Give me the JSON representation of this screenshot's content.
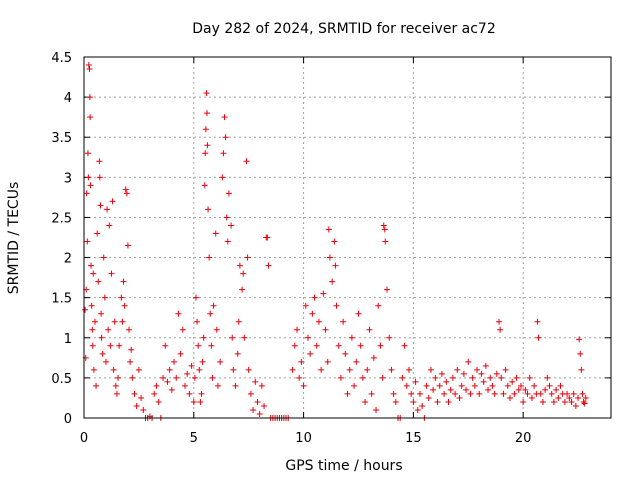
{
  "chart_data": {
    "type": "scatter",
    "title": "Day 282 of 2024, SRMTID for receiver ac72",
    "xlabel": "GPS time / hours",
    "ylabel": "SRMTID / TECUs",
    "xlim": [
      0,
      24
    ],
    "ylim": [
      0,
      4.5
    ],
    "xticks": [
      0,
      5,
      10,
      15,
      20
    ],
    "xtick_labels": [
      "0",
      "5",
      "10",
      "15",
      "20"
    ],
    "yticks": [
      0,
      0.5,
      1,
      1.5,
      2,
      2.5,
      3,
      3.5,
      4,
      4.5
    ],
    "ytick_labels": [
      "0",
      "0.5",
      "1",
      "1.5",
      "2",
      "2.5",
      "3",
      "3.5",
      "4",
      "4.5"
    ],
    "grid": true,
    "marker": "plus",
    "color": "#e8000b",
    "series": [
      {
        "name": "SRMTID",
        "points": [
          [
            0.05,
            1.35
          ],
          [
            0.08,
            0.75
          ],
          [
            0.1,
            1.6
          ],
          [
            0.12,
            2.8
          ],
          [
            0.15,
            2.2
          ],
          [
            0.18,
            3.3
          ],
          [
            0.2,
            3.0
          ],
          [
            0.22,
            4.4
          ],
          [
            0.25,
            4.35
          ],
          [
            0.27,
            4.0
          ],
          [
            0.28,
            3.75
          ],
          [
            0.3,
            2.9
          ],
          [
            0.32,
            1.9
          ],
          [
            0.35,
            1.4
          ],
          [
            0.38,
            1.1
          ],
          [
            0.4,
            0.9
          ],
          [
            0.42,
            1.8
          ],
          [
            0.45,
            0.6
          ],
          [
            0.5,
            1.2
          ],
          [
            0.55,
            0.4
          ],
          [
            0.6,
            2.3
          ],
          [
            0.65,
            1.7
          ],
          [
            0.7,
            3.2
          ],
          [
            0.72,
            3.0
          ],
          [
            0.75,
            2.65
          ],
          [
            0.78,
            1.3
          ],
          [
            0.8,
            1.0
          ],
          [
            0.85,
            0.8
          ],
          [
            0.9,
            2.0
          ],
          [
            0.95,
            1.5
          ],
          [
            1.0,
            0.7
          ],
          [
            1.05,
            2.6
          ],
          [
            1.1,
            1.1
          ],
          [
            1.15,
            2.4
          ],
          [
            1.2,
            0.9
          ],
          [
            1.25,
            1.8
          ],
          [
            1.3,
            2.7
          ],
          [
            1.35,
            0.6
          ],
          [
            1.4,
            1.2
          ],
          [
            1.45,
            0.4
          ],
          [
            1.5,
            0.3
          ],
          [
            1.55,
            0.5
          ],
          [
            1.6,
            0.9
          ],
          [
            1.7,
            1.5
          ],
          [
            1.75,
            1.2
          ],
          [
            1.8,
            1.7
          ],
          [
            1.85,
            1.4
          ],
          [
            1.9,
            2.85
          ],
          [
            1.95,
            2.8
          ],
          [
            2.0,
            2.15
          ],
          [
            2.05,
            1.1
          ],
          [
            2.1,
            0.7
          ],
          [
            2.15,
            0.85
          ],
          [
            2.2,
            0.5
          ],
          [
            2.3,
            0.3
          ],
          [
            2.4,
            0.15
          ],
          [
            2.5,
            0.6
          ],
          [
            2.6,
            0.25
          ],
          [
            2.7,
            0.1
          ],
          [
            2.8,
            0.0
          ],
          [
            2.9,
            0.0
          ],
          [
            3.0,
            0.02
          ],
          [
            3.1,
            0.0
          ],
          [
            3.2,
            0.3
          ],
          [
            3.3,
            0.4
          ],
          [
            3.4,
            0.2
          ],
          [
            3.5,
            0.0
          ],
          [
            3.6,
            0.5
          ],
          [
            3.7,
            0.9
          ],
          [
            3.8,
            0.45
          ],
          [
            3.9,
            0.6
          ],
          [
            4.0,
            0.35
          ],
          [
            4.1,
            0.7
          ],
          [
            4.2,
            0.5
          ],
          [
            4.3,
            1.3
          ],
          [
            4.4,
            0.8
          ],
          [
            4.5,
            1.1
          ],
          [
            4.6,
            0.4
          ],
          [
            4.7,
            0.55
          ],
          [
            4.8,
            0.3
          ],
          [
            4.9,
            0.65
          ],
          [
            5.0,
            0.2
          ],
          [
            5.05,
            0.5
          ],
          [
            5.1,
            1.5
          ],
          [
            5.15,
            1.2
          ],
          [
            5.2,
            0.9
          ],
          [
            5.25,
            0.6
          ],
          [
            5.3,
            0.2
          ],
          [
            5.35,
            0.3
          ],
          [
            5.4,
            0.7
          ],
          [
            5.45,
            1.0
          ],
          [
            5.5,
            2.9
          ],
          [
            5.52,
            3.3
          ],
          [
            5.55,
            3.6
          ],
          [
            5.58,
            4.05
          ],
          [
            5.6,
            3.8
          ],
          [
            5.62,
            3.4
          ],
          [
            5.65,
            2.6
          ],
          [
            5.7,
            2.0
          ],
          [
            5.75,
            1.3
          ],
          [
            5.8,
            0.9
          ],
          [
            5.85,
            0.5
          ],
          [
            5.9,
            1.4
          ],
          [
            6.0,
            2.3
          ],
          [
            6.05,
            1.1
          ],
          [
            6.1,
            0.4
          ],
          [
            6.2,
            0.7
          ],
          [
            6.3,
            3.0
          ],
          [
            6.35,
            3.3
          ],
          [
            6.4,
            3.75
          ],
          [
            6.45,
            3.5
          ],
          [
            6.5,
            2.5
          ],
          [
            6.55,
            2.2
          ],
          [
            6.6,
            2.8
          ],
          [
            6.7,
            2.4
          ],
          [
            6.75,
            1.0
          ],
          [
            6.8,
            0.6
          ],
          [
            6.9,
            0.4
          ],
          [
            7.0,
            0.8
          ],
          [
            7.05,
            1.2
          ],
          [
            7.1,
            1.9
          ],
          [
            7.2,
            1.6
          ],
          [
            7.25,
            1.8
          ],
          [
            7.3,
            1.0
          ],
          [
            7.4,
            3.2
          ],
          [
            7.45,
            2.0
          ],
          [
            7.5,
            0.6
          ],
          [
            7.6,
            0.3
          ],
          [
            7.7,
            0.1
          ],
          [
            7.8,
            0.45
          ],
          [
            7.9,
            0.2
          ],
          [
            8.0,
            0.05
          ],
          [
            8.1,
            0.4
          ],
          [
            8.2,
            0.15
          ],
          [
            8.3,
            2.25
          ],
          [
            8.35,
            2.25
          ],
          [
            8.4,
            1.9
          ],
          [
            8.5,
            0.0
          ],
          [
            8.6,
            0.0
          ],
          [
            8.7,
            0.0
          ],
          [
            8.8,
            0.0
          ],
          [
            8.9,
            0.0
          ],
          [
            9.0,
            0.0
          ],
          [
            9.1,
            0.0
          ],
          [
            9.2,
            0.0
          ],
          [
            9.3,
            0.0
          ],
          [
            9.5,
            0.6
          ],
          [
            9.6,
            0.9
          ],
          [
            9.7,
            1.1
          ],
          [
            9.8,
            0.5
          ],
          [
            9.9,
            0.7
          ],
          [
            10.0,
            0.4
          ],
          [
            10.1,
            1.4
          ],
          [
            10.2,
            1.0
          ],
          [
            10.3,
            0.8
          ],
          [
            10.4,
            1.3
          ],
          [
            10.5,
            1.5
          ],
          [
            10.6,
            0.9
          ],
          [
            10.7,
            1.2
          ],
          [
            10.8,
            0.6
          ],
          [
            10.9,
            1.55
          ],
          [
            11.0,
            1.1
          ],
          [
            11.1,
            0.7
          ],
          [
            11.15,
            2.35
          ],
          [
            11.2,
            2.0
          ],
          [
            11.3,
            1.7
          ],
          [
            11.4,
            2.2
          ],
          [
            11.45,
            1.9
          ],
          [
            11.5,
            1.4
          ],
          [
            11.6,
            0.9
          ],
          [
            11.7,
            0.5
          ],
          [
            11.8,
            1.2
          ],
          [
            11.9,
            0.8
          ],
          [
            12.0,
            0.3
          ],
          [
            12.1,
            0.6
          ],
          [
            12.2,
            1.0
          ],
          [
            12.3,
            0.4
          ],
          [
            12.4,
            0.7
          ],
          [
            12.5,
            1.3
          ],
          [
            12.6,
            0.9
          ],
          [
            12.7,
            0.5
          ],
          [
            12.8,
            0.2
          ],
          [
            12.9,
            0.6
          ],
          [
            13.0,
            1.1
          ],
          [
            13.1,
            0.3
          ],
          [
            13.2,
            0.75
          ],
          [
            13.3,
            0.1
          ],
          [
            13.4,
            1.4
          ],
          [
            13.5,
            0.9
          ],
          [
            13.6,
            0.5
          ],
          [
            13.65,
            2.4
          ],
          [
            13.7,
            2.35
          ],
          [
            13.72,
            2.2
          ],
          [
            13.8,
            1.6
          ],
          [
            13.9,
            1.0
          ],
          [
            14.0,
            0.6
          ],
          [
            14.1,
            0.3
          ],
          [
            14.2,
            0.2
          ],
          [
            14.3,
            0.0
          ],
          [
            14.4,
            0.0
          ],
          [
            14.5,
            0.5
          ],
          [
            14.6,
            0.9
          ],
          [
            14.7,
            0.4
          ],
          [
            14.8,
            0.6
          ],
          [
            14.9,
            0.3
          ],
          [
            15.0,
            0.2
          ],
          [
            15.1,
            0.45
          ],
          [
            15.2,
            0.1
          ],
          [
            15.3,
            0.3
          ],
          [
            15.4,
            0.15
          ],
          [
            15.5,
            0.0
          ],
          [
            15.6,
            0.4
          ],
          [
            15.7,
            0.25
          ],
          [
            15.8,
            0.6
          ],
          [
            15.9,
            0.35
          ],
          [
            16.0,
            0.5
          ],
          [
            16.1,
            0.2
          ],
          [
            16.2,
            0.4
          ],
          [
            16.3,
            0.55
          ],
          [
            16.4,
            0.3
          ],
          [
            16.5,
            0.45
          ],
          [
            16.6,
            0.2
          ],
          [
            16.7,
            0.35
          ],
          [
            16.8,
            0.5
          ],
          [
            16.9,
            0.3
          ],
          [
            17.0,
            0.6
          ],
          [
            17.1,
            0.25
          ],
          [
            17.2,
            0.4
          ],
          [
            17.3,
            0.55
          ],
          [
            17.4,
            0.35
          ],
          [
            17.5,
            0.7
          ],
          [
            17.6,
            0.3
          ],
          [
            17.7,
            0.5
          ],
          [
            17.8,
            0.4
          ],
          [
            17.9,
            0.6
          ],
          [
            18.0,
            0.3
          ],
          [
            18.1,
            0.55
          ],
          [
            18.2,
            0.45
          ],
          [
            18.3,
            0.65
          ],
          [
            18.4,
            0.35
          ],
          [
            18.5,
            0.5
          ],
          [
            18.6,
            0.4
          ],
          [
            18.7,
            0.3
          ],
          [
            18.8,
            0.55
          ],
          [
            18.9,
            1.2
          ],
          [
            18.95,
            1.1
          ],
          [
            19.0,
            0.5
          ],
          [
            19.1,
            0.3
          ],
          [
            19.2,
            0.6
          ],
          [
            19.3,
            0.4
          ],
          [
            19.4,
            0.25
          ],
          [
            19.5,
            0.45
          ],
          [
            19.6,
            0.3
          ],
          [
            19.7,
            0.5
          ],
          [
            19.8,
            0.35
          ],
          [
            19.9,
            0.4
          ],
          [
            20.0,
            0.2
          ],
          [
            20.1,
            0.35
          ],
          [
            20.2,
            0.3
          ],
          [
            20.3,
            0.5
          ],
          [
            20.4,
            0.25
          ],
          [
            20.5,
            0.4
          ],
          [
            20.6,
            0.3
          ],
          [
            20.65,
            1.2
          ],
          [
            20.7,
            1.0
          ],
          [
            20.8,
            0.3
          ],
          [
            20.9,
            0.2
          ],
          [
            21.0,
            0.35
          ],
          [
            21.1,
            0.5
          ],
          [
            21.2,
            0.4
          ],
          [
            21.3,
            0.3
          ],
          [
            21.4,
            0.2
          ],
          [
            21.5,
            0.35
          ],
          [
            21.6,
            0.25
          ],
          [
            21.7,
            0.4
          ],
          [
            21.8,
            0.3
          ],
          [
            21.9,
            0.2
          ],
          [
            22.0,
            0.3
          ],
          [
            22.1,
            0.25
          ],
          [
            22.2,
            0.2
          ],
          [
            22.3,
            0.3
          ],
          [
            22.4,
            0.15
          ],
          [
            22.5,
            0.25
          ],
          [
            22.55,
            0.98
          ],
          [
            22.6,
            0.8
          ],
          [
            22.65,
            0.6
          ],
          [
            22.7,
            0.3
          ],
          [
            22.75,
            0.2
          ],
          [
            22.8,
            0.18
          ],
          [
            22.85,
            0.25
          ]
        ]
      }
    ]
  }
}
